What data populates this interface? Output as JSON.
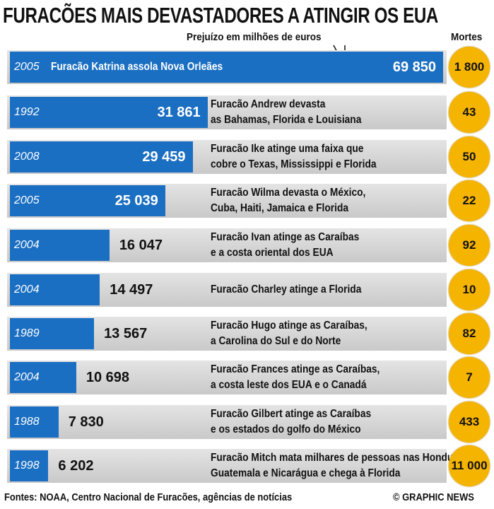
{
  "chart_data": {
    "type": "bar",
    "title": "FURACÕES MAIS DEVASTADORES A ATINGIR OS EUA",
    "value_axis_label": "Prejuízo em milhões de euros",
    "deaths_label": "Mortes",
    "years": [
      "2005",
      "1992",
      "2008",
      "2005",
      "2004",
      "2004",
      "1989",
      "2004",
      "1988",
      "1998"
    ],
    "categories": [
      "Furacão Katrina assola Nova Orleães",
      "Furacão Andrew devasta\nas Bahamas, Florida e Louisiana",
      "Furacão Ike atinge uma faixa que\ncobre o Texas, Mississippi e Florida",
      "Furacão Wilma devasta o México,\nCuba, Haiti, Jamaica e Florida",
      "Furacão Ivan atinge as Caraíbas\ne a costa oriental dos EUA",
      "Furacão Charley atinge a Florida",
      "Furacão Hugo atinge as Caraíbas,\na Carolina do Sul e do Norte",
      "Furacão Frances atinge as Caraíbas,\na costa leste dos EUA e o Canadá",
      "Furacão Gilbert atinge as Caraíbas\ne os estados do golfo do México",
      "Furacão Mitch mata milhares de pessoas nas Honduras,\nGuatemala e Nicarágua e chega à Florida"
    ],
    "values": [
      69850,
      31861,
      29459,
      25039,
      16047,
      14497,
      13567,
      10698,
      7830,
      6202
    ],
    "value_labels": [
      "69 850",
      "31 861",
      "29 459",
      "25 039",
      "16 047",
      "14 497",
      "13 567",
      "10 698",
      "7 830",
      "6 202"
    ],
    "deaths": [
      1800,
      43,
      50,
      22,
      92,
      10,
      82,
      7,
      433,
      11000
    ],
    "deaths_labels": [
      "1 800",
      "43",
      "50",
      "22",
      "92",
      "10",
      "82",
      "7",
      "433",
      "11 000"
    ],
    "bar_color": "#1b6fc2",
    "deaths_color": "#f5b400",
    "source": "Fontes: NOAA, Centro Nacional de Furacões, agências de notícias",
    "credit": "© GRAPHIC NEWS"
  }
}
